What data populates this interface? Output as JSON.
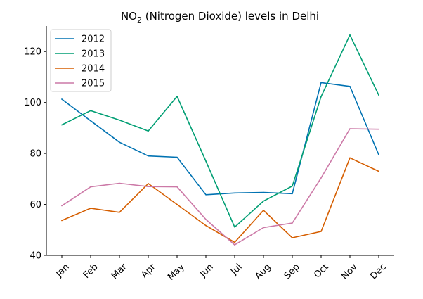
{
  "chart_data": {
    "type": "line",
    "title_main": "NO",
    "title_sub": "2",
    "title_rest": " (Nitrogen Dioxide) levels in Delhi",
    "xlabel": "",
    "ylabel": "",
    "categories": [
      "Jan",
      "Feb",
      "Mar",
      "Apr",
      "May",
      "Jun",
      "Jul",
      "Aug",
      "Sep",
      "Oct",
      "Nov",
      "Dec"
    ],
    "ylim": [
      40,
      130
    ],
    "yticks": [
      40,
      60,
      80,
      100,
      120
    ],
    "grid": false,
    "legend_position": "top-left",
    "series": [
      {
        "name": "2012",
        "color": "#0072b2",
        "values": [
          101.3,
          92.8,
          84.4,
          79.0,
          78.5,
          63.8,
          64.5,
          64.7,
          64.2,
          107.8,
          106.3,
          79.5
        ]
      },
      {
        "name": "2013",
        "color": "#009e73",
        "values": [
          91.2,
          96.8,
          93.1,
          88.8,
          102.4,
          77.0,
          51.1,
          61.3,
          67.2,
          102.3,
          126.5,
          102.9
        ]
      },
      {
        "name": "2014",
        "color": "#d55e00",
        "values": [
          53.7,
          58.5,
          56.9,
          68.2,
          60.0,
          51.7,
          45.1,
          57.7,
          46.9,
          49.4,
          78.3,
          73.0
        ]
      },
      {
        "name": "2015",
        "color": "#cc79a7",
        "values": [
          59.5,
          66.9,
          68.3,
          67.0,
          66.9,
          54.1,
          44.1,
          50.9,
          52.7,
          70.4,
          89.7,
          89.5
        ]
      }
    ]
  }
}
